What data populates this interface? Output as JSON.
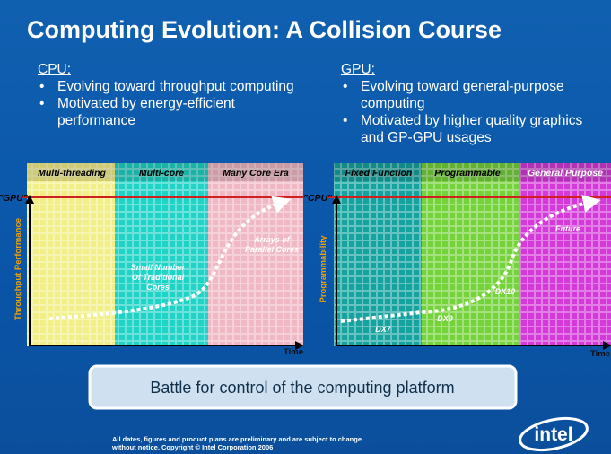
{
  "title": "Computing Evolution: A Collision Course",
  "cpu": {
    "heading": "CPU:",
    "bullets": [
      "Evolving toward throughput computing",
      "Motivated by energy-efficient performance"
    ]
  },
  "gpu": {
    "heading": "GPU:",
    "bullets": [
      "Evolving toward general-purpose computing",
      "Motivated by higher quality graphics and GP-GPU usages"
    ]
  },
  "left_panel": {
    "regions": [
      "Multi-threading",
      "Multi-core",
      "Many Core Era"
    ],
    "line_label": "\"GPU\"",
    "y_label": "Throughput Performance",
    "x_label": "Time",
    "annotations": [
      "Small Number Of Traditional Cores",
      "Arrays of Parallel Cores"
    ]
  },
  "right_panel": {
    "regions": [
      "Fixed Function",
      "Programmable",
      "General Purpose"
    ],
    "line_label": "\"CPU\"",
    "y_label": "Programmability",
    "x_label": "Time",
    "annotations": [
      "DX7",
      "DX9",
      "DX10",
      "Future"
    ]
  },
  "banner": "Battle for control of the computing platform",
  "footer": [
    "All dates, figures and product plans are preliminary and are subject to change",
    "without notice.   Copyright © Intel Corporation 2006"
  ],
  "logo": "intel"
}
